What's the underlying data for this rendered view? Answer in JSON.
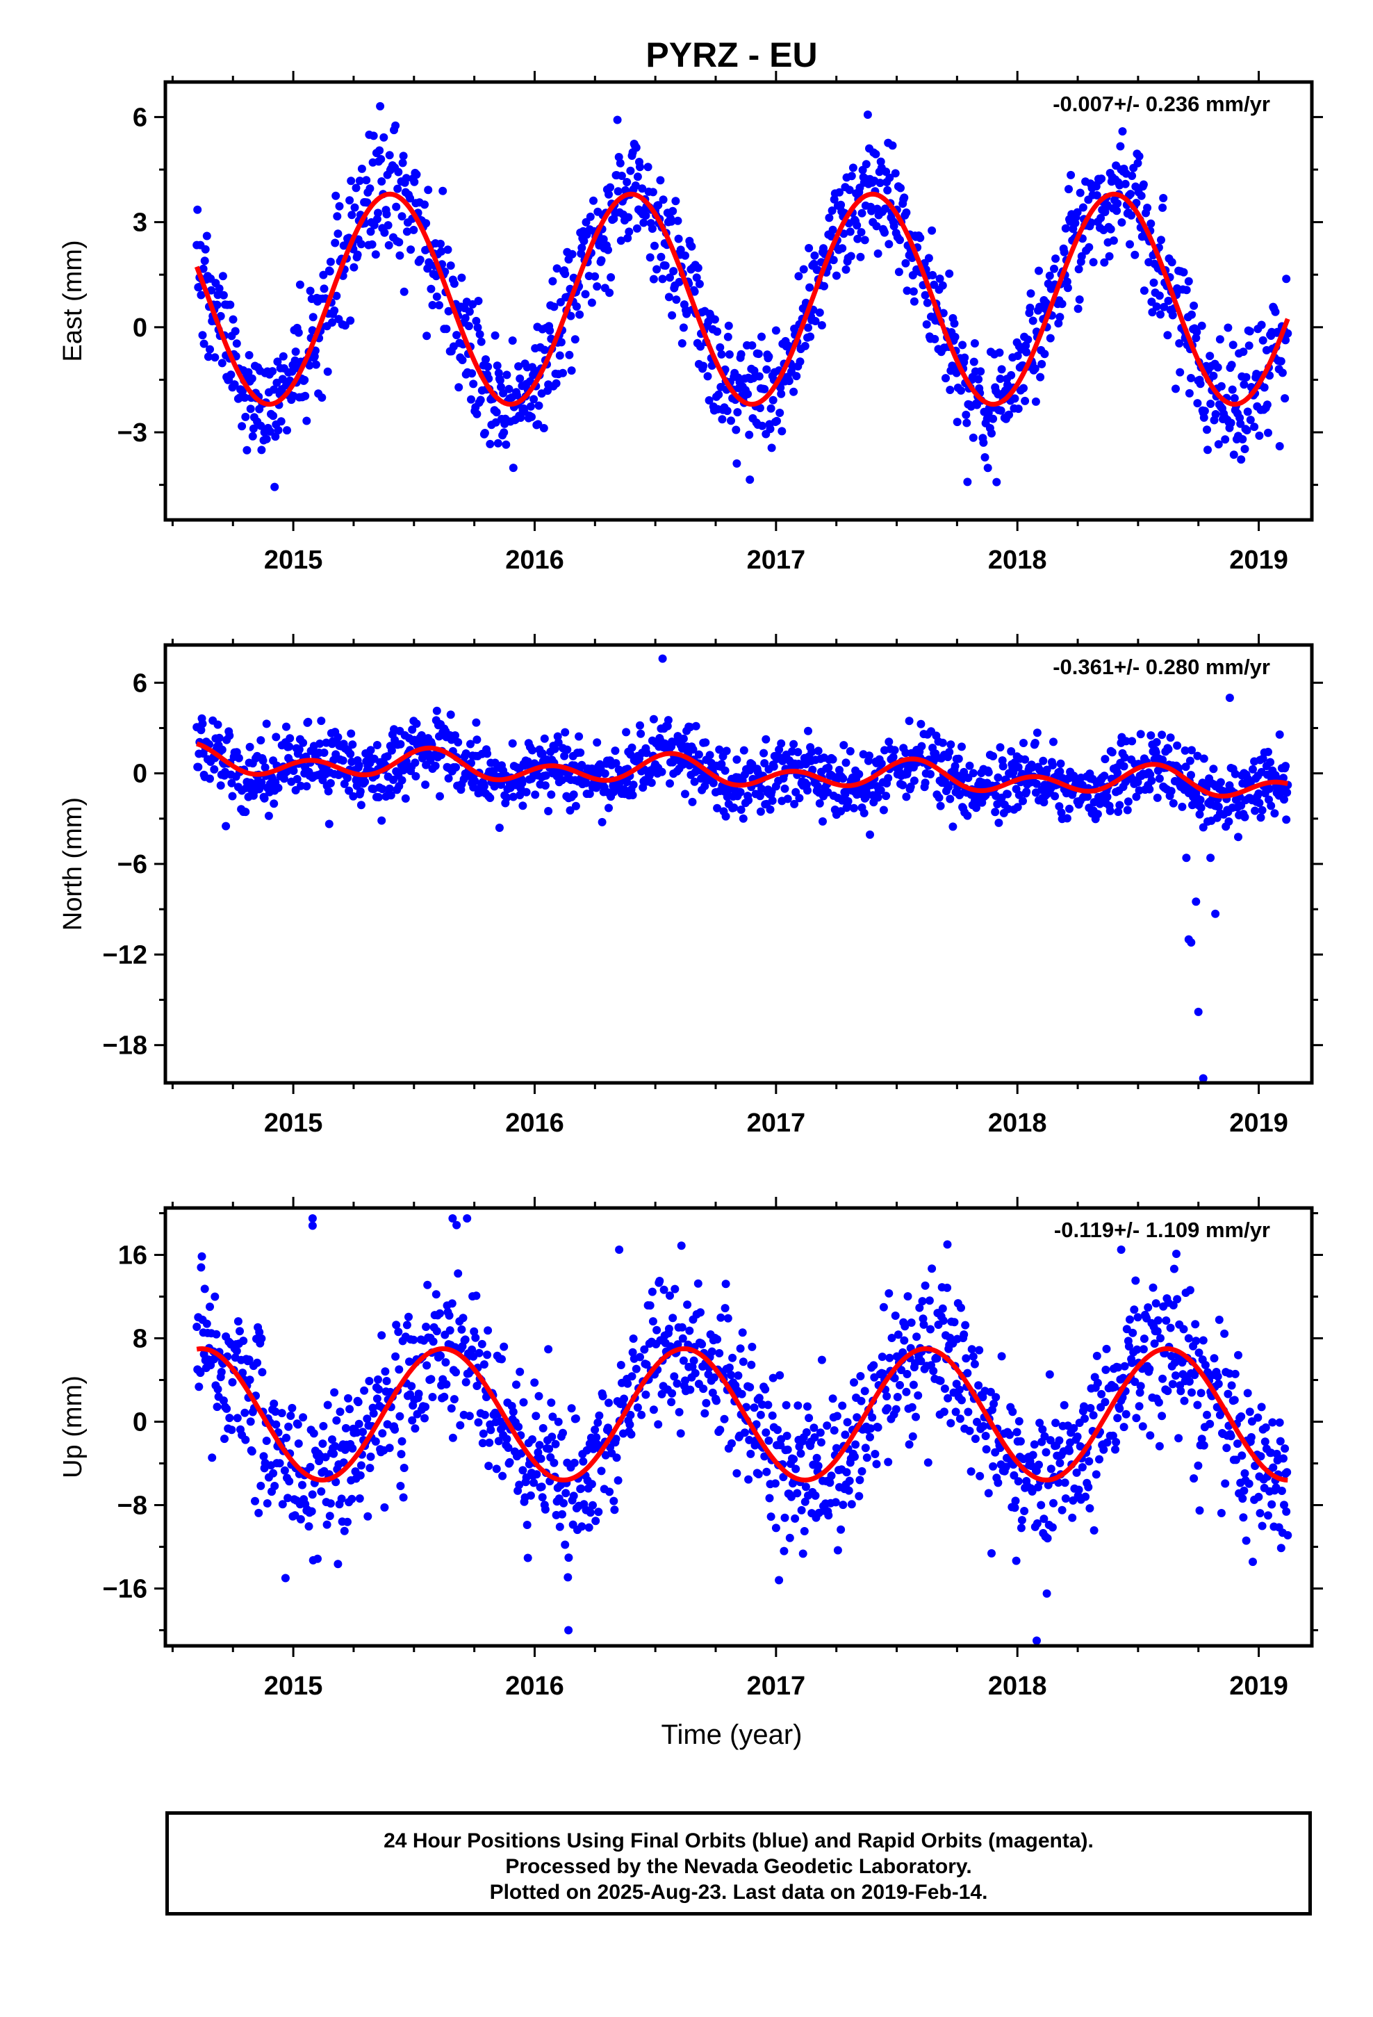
{
  "title": "PYRZ - EU",
  "xlabel": "Time (year)",
  "footer": [
    "24 Hour Positions Using Final Orbits (blue) and Rapid Orbits (magenta).",
    "Processed by the Nevada Geodetic Laboratory.",
    "Plotted on 2025-Aug-23. Last data on 2019-Feb-14."
  ],
  "colors": {
    "points": "#0000ff",
    "fit": "#ff0000",
    "frame": "#000000"
  },
  "chart_data": [
    {
      "type": "scatter",
      "ylabel": "East (mm)",
      "rate_label": "-0.007+/- 0.236 mm/yr",
      "xlim": [
        2014.47,
        2019.22
      ],
      "ylim": [
        -5.5,
        7.0
      ],
      "xticks": [
        2015,
        2016,
        2017,
        2018,
        2019
      ],
      "yticks": [
        -3,
        0,
        3,
        6
      ],
      "fit": {
        "mean": 0.8,
        "annual_amplitude": 3.0,
        "annual_peak": 2015.4,
        "semiannual_amplitude": 0.0,
        "semiannual_peak": 0.0,
        "step": 0.0,
        "step_date": 0.0
      },
      "scatter_sd": 0.9,
      "data_start": 2014.6,
      "data_end": 2019.12,
      "outliers": []
    },
    {
      "type": "scatter",
      "ylabel": "North (mm)",
      "rate_label": "-0.361+/- 0.280 mm/yr",
      "xlim": [
        2014.47,
        2019.22
      ],
      "ylim": [
        -20.5,
        8.5
      ],
      "xticks": [
        2015,
        2016,
        2017,
        2018,
        2019
      ],
      "yticks": [
        -18,
        -12,
        -6,
        0,
        6
      ],
      "fit": {
        "mean": 0.0,
        "annual_amplitude": 0.5,
        "annual_peak": 2015.55,
        "semiannual_amplitude": 0.7,
        "semiannual_peak": 2015.07,
        "step": 0.0,
        "step_date": 0.0
      },
      "trend": -0.361,
      "scatter_sd": 1.1,
      "data_start": 2014.6,
      "data_end": 2019.12,
      "outliers": [
        [
          2016.53,
          7.6
        ],
        [
          2018.88,
          5.0
        ],
        [
          2018.7,
          -5.6
        ],
        [
          2018.74,
          -8.5
        ],
        [
          2018.8,
          -5.6
        ],
        [
          2018.82,
          -9.3
        ],
        [
          2018.71,
          -11.0
        ],
        [
          2018.72,
          -11.2
        ],
        [
          2018.75,
          -15.8
        ],
        [
          2018.77,
          -20.2
        ]
      ]
    },
    {
      "type": "scatter",
      "ylabel": "Up (mm)",
      "rate_label": "-0.119+/- 1.109 mm/yr",
      "xlim": [
        2014.47,
        2019.22
      ],
      "ylim": [
        -21.5,
        20.5
      ],
      "xticks": [
        2015,
        2016,
        2017,
        2018,
        2019
      ],
      "yticks": [
        -16,
        -8,
        0,
        8,
        16
      ],
      "fit": {
        "mean": 0.7,
        "annual_amplitude": 6.3,
        "annual_peak": 2015.62,
        "semiannual_amplitude": 0.0,
        "semiannual_peak": 0.0,
        "step": 0.0,
        "step_date": 0.0
      },
      "scatter_sd": 3.8,
      "data_start": 2014.6,
      "data_end": 2019.12,
      "outliers": [
        [
          2015.08,
          19.5
        ],
        [
          2015.08,
          18.8
        ],
        [
          2015.66,
          19.5
        ],
        [
          2015.72,
          19.5
        ],
        [
          2016.35,
          16.5
        ],
        [
          2017.71,
          17.0
        ],
        [
          2018.43,
          16.5
        ],
        [
          2016.14,
          -20.0
        ],
        [
          2018.08,
          -21.0
        ]
      ]
    }
  ]
}
